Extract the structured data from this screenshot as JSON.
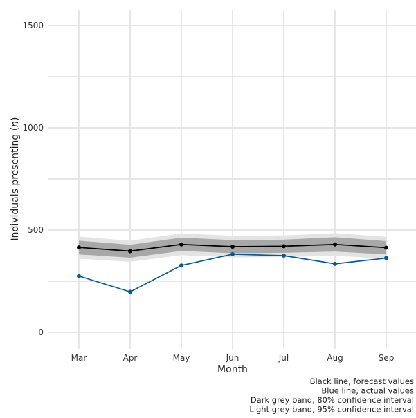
{
  "chart_data": {
    "type": "line",
    "categories": [
      "Mar",
      "Apr",
      "May",
      "Jun",
      "Jul",
      "Aug",
      "Sep"
    ],
    "series": [
      {
        "values": [
          415,
          397,
          430,
          419,
          421,
          430,
          414
        ],
        "color": "#000000"
      },
      {
        "values": [
          275,
          198,
          327,
          382,
          375,
          335,
          363
        ],
        "color": "#0b5a8f"
      }
    ],
    "bands": [
      {
        "lower": [
          360,
          345,
          377,
          366,
          368,
          374,
          360
        ],
        "upper": [
          468,
          448,
          484,
          472,
          474,
          485,
          467
        ],
        "color": "#e3e3e3"
      },
      {
        "lower": [
          381,
          365,
          398,
          387,
          389,
          395,
          381
        ],
        "upper": [
          448,
          428,
          463,
          451,
          453,
          465,
          446
        ],
        "color": "#a8a8a8"
      }
    ],
    "xlabel": "Month",
    "ylabel": "Individuals presenting (n)",
    "ylim": [
      0,
      1500
    ],
    "yticks": [
      0,
      500,
      1000,
      1500
    ],
    "grid": true,
    "legend_notes": [
      "Black line, forecast values",
      "Blue line, actual values",
      "Dark grey band, 80% confidence interval",
      "Light grey band, 95% confidence interval"
    ]
  }
}
